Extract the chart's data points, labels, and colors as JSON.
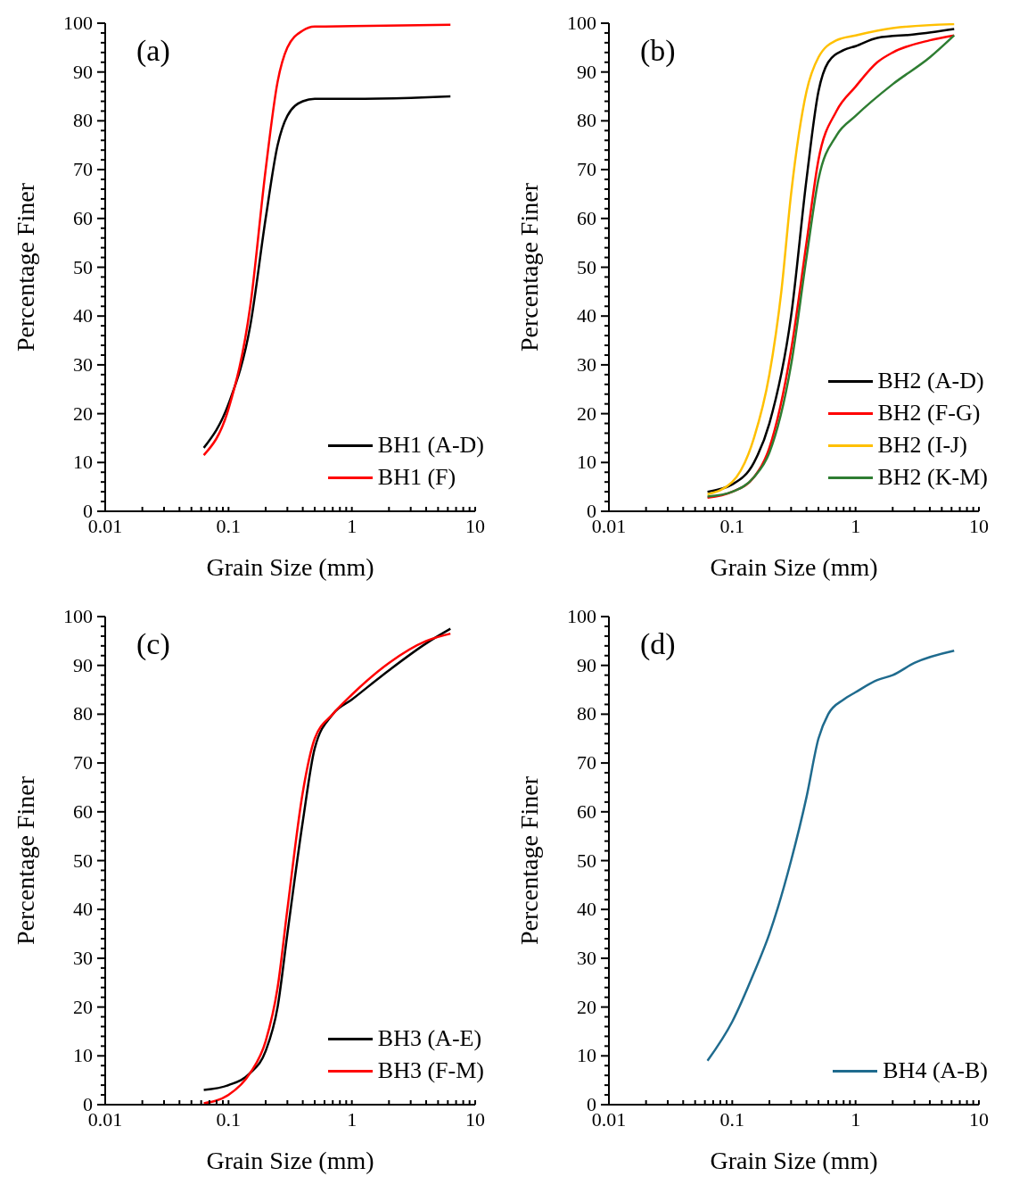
{
  "chart_data": [
    {
      "type": "line",
      "title": "(a)",
      "xlabel": "Grain Size (mm)",
      "ylabel": "Percentage Finer",
      "log": "x",
      "legend": "bottom right",
      "line_style": "solid",
      "xlim": [
        0.01,
        10
      ],
      "xticks": [
        0.01,
        {
          "value": 0.02,
          "label": null
        },
        {
          "value": 0.03,
          "label": null
        },
        {
          "value": 0.04,
          "label": null
        },
        {
          "value": 0.05,
          "label": null
        },
        {
          "value": 0.06,
          "label": null
        },
        {
          "value": 0.07,
          "label": null
        },
        {
          "value": 0.08,
          "label": null
        },
        {
          "value": 0.09,
          "label": null
        },
        0.1,
        {
          "value": 0.2,
          "label": null
        },
        {
          "value": 0.3,
          "label": null
        },
        {
          "value": 0.4,
          "label": null
        },
        {
          "value": 0.5,
          "label": null
        },
        {
          "value": 0.6,
          "label": null
        },
        {
          "value": 0.7,
          "label": null
        },
        {
          "value": 0.8,
          "label": null
        },
        {
          "value": 0.9,
          "label": null
        },
        1,
        {
          "value": 2,
          "label": null
        },
        {
          "value": 3,
          "label": null
        },
        {
          "value": 4,
          "label": null
        },
        {
          "value": 5,
          "label": null
        },
        {
          "value": 6,
          "label": null
        },
        {
          "value": 7,
          "label": null
        },
        {
          "value": 8,
          "label": null
        },
        {
          "value": 9,
          "label": null
        },
        10
      ],
      "ylim": [
        0,
        100
      ],
      "yticks": [
        0,
        {
          "value": 2,
          "label": null
        },
        {
          "value": 4,
          "label": null
        },
        {
          "value": 6,
          "label": null
        },
        {
          "value": 8,
          "label": null
        },
        10,
        {
          "value": 12,
          "label": null
        },
        {
          "value": 14,
          "label": null
        },
        {
          "value": 16,
          "label": null
        },
        {
          "value": 18,
          "label": null
        },
        20,
        {
          "value": 22,
          "label": null
        },
        {
          "value": 24,
          "label": null
        },
        {
          "value": 26,
          "label": null
        },
        {
          "value": 28,
          "label": null
        },
        30,
        {
          "value": 32,
          "label": null
        },
        {
          "value": 34,
          "label": null
        },
        {
          "value": 36,
          "label": null
        },
        {
          "value": 38,
          "label": null
        },
        40,
        {
          "value": 42,
          "label": null
        },
        {
          "value": 44,
          "label": null
        },
        {
          "value": 46,
          "label": null
        },
        {
          "value": 48,
          "label": null
        },
        50,
        {
          "value": 52,
          "label": null
        },
        {
          "value": 54,
          "label": null
        },
        {
          "value": 56,
          "label": null
        },
        {
          "value": 58,
          "label": null
        },
        60,
        {
          "value": 62,
          "label": null
        },
        {
          "value": 64,
          "label": null
        },
        {
          "value": 66,
          "label": null
        },
        {
          "value": 68,
          "label": null
        },
        70,
        {
          "value": 72,
          "label": null
        },
        {
          "value": 74,
          "label": null
        },
        {
          "value": 76,
          "label": null
        },
        {
          "value": 78,
          "label": null
        },
        80,
        {
          "value": 82,
          "label": null
        },
        {
          "value": 84,
          "label": null
        },
        {
          "value": 86,
          "label": null
        },
        {
          "value": 88,
          "label": null
        },
        90,
        {
          "value": 92,
          "label": null
        },
        {
          "value": 94,
          "label": null
        },
        {
          "value": 96,
          "label": null
        },
        {
          "value": 98,
          "label": null
        },
        100
      ],
      "series": [
        {
          "name": "BH1 (A-D)",
          "color": "#000000",
          "x": [
            0.063,
            0.1,
            0.15,
            0.2,
            0.25,
            0.3,
            0.4,
            0.5,
            1,
            3,
            6.3
          ],
          "values": [
            13,
            22,
            38,
            60,
            75,
            81,
            84,
            84.5,
            84.5,
            84.7,
            85
          ]
        },
        {
          "name": "BH1 (F)",
          "color": "#ff0000",
          "x": [
            0.063,
            0.1,
            0.15,
            0.2,
            0.25,
            0.3,
            0.4,
            0.5,
            1,
            6.3
          ],
          "values": [
            11.5,
            21,
            42,
            70,
            88,
            95,
            98.5,
            99.3,
            99.4,
            99.7
          ]
        }
      ]
    },
    {
      "type": "line",
      "title": "(b)",
      "xlabel": "Grain Size (mm)",
      "ylabel": "Percentage Finer",
      "log": "x",
      "legend": "bottom right",
      "line_style": "solid",
      "xlim": [
        0.01,
        10
      ],
      "xticks": [
        0.01,
        {
          "value": 0.02,
          "label": null
        },
        {
          "value": 0.03,
          "label": null
        },
        {
          "value": 0.04,
          "label": null
        },
        {
          "value": 0.05,
          "label": null
        },
        {
          "value": 0.06,
          "label": null
        },
        {
          "value": 0.07,
          "label": null
        },
        {
          "value": 0.08,
          "label": null
        },
        {
          "value": 0.09,
          "label": null
        },
        0.1,
        {
          "value": 0.2,
          "label": null
        },
        {
          "value": 0.3,
          "label": null
        },
        {
          "value": 0.4,
          "label": null
        },
        {
          "value": 0.5,
          "label": null
        },
        {
          "value": 0.6,
          "label": null
        },
        {
          "value": 0.7,
          "label": null
        },
        {
          "value": 0.8,
          "label": null
        },
        {
          "value": 0.9,
          "label": null
        },
        1,
        {
          "value": 2,
          "label": null
        },
        {
          "value": 3,
          "label": null
        },
        {
          "value": 4,
          "label": null
        },
        {
          "value": 5,
          "label": null
        },
        {
          "value": 6,
          "label": null
        },
        {
          "value": 7,
          "label": null
        },
        {
          "value": 8,
          "label": null
        },
        {
          "value": 9,
          "label": null
        },
        10
      ],
      "ylim": [
        0,
        100
      ],
      "yticks": [
        0,
        {
          "value": 2,
          "label": null
        },
        {
          "value": 4,
          "label": null
        },
        {
          "value": 6,
          "label": null
        },
        {
          "value": 8,
          "label": null
        },
        10,
        {
          "value": 12,
          "label": null
        },
        {
          "value": 14,
          "label": null
        },
        {
          "value": 16,
          "label": null
        },
        {
          "value": 18,
          "label": null
        },
        20,
        {
          "value": 22,
          "label": null
        },
        {
          "value": 24,
          "label": null
        },
        {
          "value": 26,
          "label": null
        },
        {
          "value": 28,
          "label": null
        },
        30,
        {
          "value": 32,
          "label": null
        },
        {
          "value": 34,
          "label": null
        },
        {
          "value": 36,
          "label": null
        },
        {
          "value": 38,
          "label": null
        },
        40,
        {
          "value": 42,
          "label": null
        },
        {
          "value": 44,
          "label": null
        },
        {
          "value": 46,
          "label": null
        },
        {
          "value": 48,
          "label": null
        },
        50,
        {
          "value": 52,
          "label": null
        },
        {
          "value": 54,
          "label": null
        },
        {
          "value": 56,
          "label": null
        },
        {
          "value": 58,
          "label": null
        },
        60,
        {
          "value": 62,
          "label": null
        },
        {
          "value": 64,
          "label": null
        },
        {
          "value": 66,
          "label": null
        },
        {
          "value": 68,
          "label": null
        },
        70,
        {
          "value": 72,
          "label": null
        },
        {
          "value": 74,
          "label": null
        },
        {
          "value": 76,
          "label": null
        },
        {
          "value": 78,
          "label": null
        },
        80,
        {
          "value": 82,
          "label": null
        },
        {
          "value": 84,
          "label": null
        },
        {
          "value": 86,
          "label": null
        },
        {
          "value": 88,
          "label": null
        },
        90,
        {
          "value": 92,
          "label": null
        },
        {
          "value": 94,
          "label": null
        },
        {
          "value": 96,
          "label": null
        },
        {
          "value": 98,
          "label": null
        },
        100
      ],
      "series": [
        {
          "name": "BH2 (A-D)",
          "color": "#000000",
          "x": [
            0.063,
            0.1,
            0.15,
            0.2,
            0.3,
            0.4,
            0.5,
            0.6,
            0.8,
            1,
            1.5,
            3,
            6.3
          ],
          "values": [
            4,
            5.5,
            10,
            18,
            40,
            68,
            86,
            92,
            94.5,
            95.3,
            97,
            97.7,
            98.8
          ]
        },
        {
          "name": "BH2 (F-G)",
          "color": "#ff0000",
          "x": [
            0.063,
            0.1,
            0.15,
            0.2,
            0.3,
            0.4,
            0.5,
            0.7,
            1,
            1.5,
            2,
            4,
            6.3
          ],
          "values": [
            2.8,
            4,
            7,
            13,
            33,
            55,
            72,
            82,
            87,
            92,
            94,
            96.5,
            97.5
          ]
        },
        {
          "name": "BH2 (I-J)",
          "color": "#ffc000",
          "x": [
            0.063,
            0.1,
            0.15,
            0.2,
            0.25,
            0.3,
            0.4,
            0.5,
            0.7,
            1,
            2,
            6.3
          ],
          "values": [
            3.5,
            6,
            15,
            28,
            45,
            65,
            86,
            93,
            96.5,
            97.5,
            99,
            99.8
          ]
        },
        {
          "name": "BH2 (K-M)",
          "color": "#2e7d32",
          "x": [
            0.063,
            0.1,
            0.15,
            0.2,
            0.3,
            0.4,
            0.5,
            0.7,
            1,
            2,
            4,
            6.3
          ],
          "values": [
            3,
            4,
            7,
            12,
            30,
            52,
            68,
            77,
            81,
            87.5,
            93,
            97.5
          ]
        }
      ]
    },
    {
      "type": "line",
      "title": "(c)",
      "xlabel": "Grain Size (mm)",
      "ylabel": "Percentage Finer",
      "log": "x",
      "legend": "bottom right",
      "line_style": "solid",
      "xlim": [
        0.01,
        10
      ],
      "xticks": [
        0.01,
        {
          "value": 0.02,
          "label": null
        },
        {
          "value": 0.03,
          "label": null
        },
        {
          "value": 0.04,
          "label": null
        },
        {
          "value": 0.05,
          "label": null
        },
        {
          "value": 0.06,
          "label": null
        },
        {
          "value": 0.07,
          "label": null
        },
        {
          "value": 0.08,
          "label": null
        },
        {
          "value": 0.09,
          "label": null
        },
        0.1,
        {
          "value": 0.2,
          "label": null
        },
        {
          "value": 0.3,
          "label": null
        },
        {
          "value": 0.4,
          "label": null
        },
        {
          "value": 0.5,
          "label": null
        },
        {
          "value": 0.6,
          "label": null
        },
        {
          "value": 0.7,
          "label": null
        },
        {
          "value": 0.8,
          "label": null
        },
        {
          "value": 0.9,
          "label": null
        },
        1,
        {
          "value": 2,
          "label": null
        },
        {
          "value": 3,
          "label": null
        },
        {
          "value": 4,
          "label": null
        },
        {
          "value": 5,
          "label": null
        },
        {
          "value": 6,
          "label": null
        },
        {
          "value": 7,
          "label": null
        },
        {
          "value": 8,
          "label": null
        },
        {
          "value": 9,
          "label": null
        },
        10
      ],
      "ylim": [
        0,
        100
      ],
      "yticks": [
        0,
        {
          "value": 2,
          "label": null
        },
        {
          "value": 4,
          "label": null
        },
        {
          "value": 6,
          "label": null
        },
        {
          "value": 8,
          "label": null
        },
        10,
        {
          "value": 12,
          "label": null
        },
        {
          "value": 14,
          "label": null
        },
        {
          "value": 16,
          "label": null
        },
        {
          "value": 18,
          "label": null
        },
        20,
        {
          "value": 22,
          "label": null
        },
        {
          "value": 24,
          "label": null
        },
        {
          "value": 26,
          "label": null
        },
        {
          "value": 28,
          "label": null
        },
        30,
        {
          "value": 32,
          "label": null
        },
        {
          "value": 34,
          "label": null
        },
        {
          "value": 36,
          "label": null
        },
        {
          "value": 38,
          "label": null
        },
        40,
        {
          "value": 42,
          "label": null
        },
        {
          "value": 44,
          "label": null
        },
        {
          "value": 46,
          "label": null
        },
        {
          "value": 48,
          "label": null
        },
        50,
        {
          "value": 52,
          "label": null
        },
        {
          "value": 54,
          "label": null
        },
        {
          "value": 56,
          "label": null
        },
        {
          "value": 58,
          "label": null
        },
        60,
        {
          "value": 62,
          "label": null
        },
        {
          "value": 64,
          "label": null
        },
        {
          "value": 66,
          "label": null
        },
        {
          "value": 68,
          "label": null
        },
        70,
        {
          "value": 72,
          "label": null
        },
        {
          "value": 74,
          "label": null
        },
        {
          "value": 76,
          "label": null
        },
        {
          "value": 78,
          "label": null
        },
        80,
        {
          "value": 82,
          "label": null
        },
        {
          "value": 84,
          "label": null
        },
        {
          "value": 86,
          "label": null
        },
        {
          "value": 88,
          "label": null
        },
        90,
        {
          "value": 92,
          "label": null
        },
        {
          "value": 94,
          "label": null
        },
        {
          "value": 96,
          "label": null
        },
        {
          "value": 98,
          "label": null
        },
        100
      ],
      "series": [
        {
          "name": "BH3 (A-E)",
          "color": "#000000",
          "x": [
            0.063,
            0.1,
            0.15,
            0.2,
            0.25,
            0.3,
            0.4,
            0.5,
            0.7,
            1,
            2,
            4,
            6.3
          ],
          "values": [
            3,
            4,
            6.5,
            11,
            20,
            35,
            58,
            73,
            80,
            83,
            89,
            94.5,
            97.5
          ]
        },
        {
          "name": "BH3 (F-M)",
          "color": "#ff0000",
          "x": [
            0.063,
            0.1,
            0.15,
            0.2,
            0.25,
            0.3,
            0.4,
            0.5,
            0.7,
            1,
            2,
            4,
            6.3
          ],
          "values": [
            0.3,
            2,
            6.5,
            13,
            24,
            40,
            64,
            75,
            80,
            84,
            90.5,
            95,
            96.5
          ]
        }
      ]
    },
    {
      "type": "line",
      "title": "(d)",
      "xlabel": "Grain Size (mm)",
      "ylabel": "Percentage Finer",
      "log": "x",
      "legend": "bottom right",
      "line_style": "solid",
      "xlim": [
        0.01,
        10
      ],
      "xticks": [
        0.01,
        {
          "value": 0.02,
          "label": null
        },
        {
          "value": 0.03,
          "label": null
        },
        {
          "value": 0.04,
          "label": null
        },
        {
          "value": 0.05,
          "label": null
        },
        {
          "value": 0.06,
          "label": null
        },
        {
          "value": 0.07,
          "label": null
        },
        {
          "value": 0.08,
          "label": null
        },
        {
          "value": 0.09,
          "label": null
        },
        0.1,
        {
          "value": 0.2,
          "label": null
        },
        {
          "value": 0.3,
          "label": null
        },
        {
          "value": 0.4,
          "label": null
        },
        {
          "value": 0.5,
          "label": null
        },
        {
          "value": 0.6,
          "label": null
        },
        {
          "value": 0.7,
          "label": null
        },
        {
          "value": 0.8,
          "label": null
        },
        {
          "value": 0.9,
          "label": null
        },
        1,
        {
          "value": 2,
          "label": null
        },
        {
          "value": 3,
          "label": null
        },
        {
          "value": 4,
          "label": null
        },
        {
          "value": 5,
          "label": null
        },
        {
          "value": 6,
          "label": null
        },
        {
          "value": 7,
          "label": null
        },
        {
          "value": 8,
          "label": null
        },
        {
          "value": 9,
          "label": null
        },
        10
      ],
      "ylim": [
        0,
        100
      ],
      "yticks": [
        0,
        {
          "value": 2,
          "label": null
        },
        {
          "value": 4,
          "label": null
        },
        {
          "value": 6,
          "label": null
        },
        {
          "value": 8,
          "label": null
        },
        10,
        {
          "value": 12,
          "label": null
        },
        {
          "value": 14,
          "label": null
        },
        {
          "value": 16,
          "label": null
        },
        {
          "value": 18,
          "label": null
        },
        20,
        {
          "value": 22,
          "label": null
        },
        {
          "value": 24,
          "label": null
        },
        {
          "value": 26,
          "label": null
        },
        {
          "value": 28,
          "label": null
        },
        30,
        {
          "value": 32,
          "label": null
        },
        {
          "value": 34,
          "label": null
        },
        {
          "value": 36,
          "label": null
        },
        {
          "value": 38,
          "label": null
        },
        40,
        {
          "value": 42,
          "label": null
        },
        {
          "value": 44,
          "label": null
        },
        {
          "value": 46,
          "label": null
        },
        {
          "value": 48,
          "label": null
        },
        50,
        {
          "value": 52,
          "label": null
        },
        {
          "value": 54,
          "label": null
        },
        {
          "value": 56,
          "label": null
        },
        {
          "value": 58,
          "label": null
        },
        60,
        {
          "value": 62,
          "label": null
        },
        {
          "value": 64,
          "label": null
        },
        {
          "value": 66,
          "label": null
        },
        {
          "value": 68,
          "label": null
        },
        70,
        {
          "value": 72,
          "label": null
        },
        {
          "value": 74,
          "label": null
        },
        {
          "value": 76,
          "label": null
        },
        {
          "value": 78,
          "label": null
        },
        80,
        {
          "value": 82,
          "label": null
        },
        {
          "value": 84,
          "label": null
        },
        {
          "value": 86,
          "label": null
        },
        {
          "value": 88,
          "label": null
        },
        90,
        {
          "value": 92,
          "label": null
        },
        {
          "value": 94,
          "label": null
        },
        {
          "value": 96,
          "label": null
        },
        {
          "value": 98,
          "label": null
        },
        100
      ],
      "series": [
        {
          "name": "BH4 (A-B)",
          "color": "#1f6b8e",
          "x": [
            0.063,
            0.1,
            0.15,
            0.2,
            0.3,
            0.4,
            0.5,
            0.6,
            0.8,
            1,
            1.5,
            2,
            3,
            6.3
          ],
          "values": [
            9,
            17,
            27,
            35,
            50,
            63,
            75,
            80,
            83,
            84.5,
            87,
            88,
            90.5,
            93
          ]
        }
      ]
    }
  ]
}
